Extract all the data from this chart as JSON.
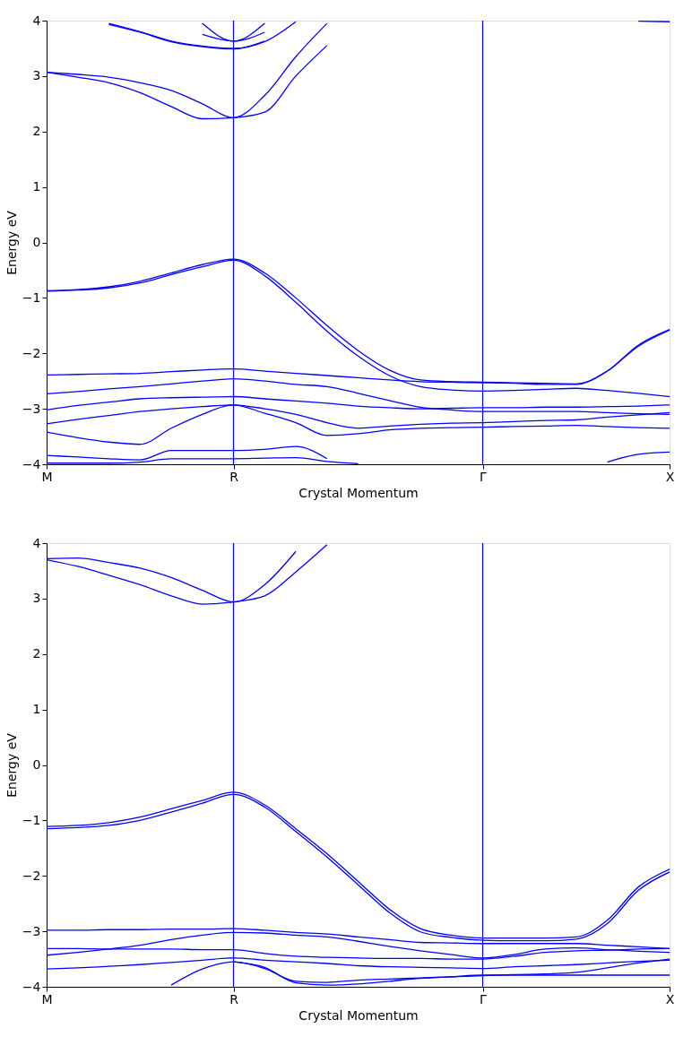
{
  "chart_data": [
    {
      "type": "line",
      "xlabel": "Crystal Momentum",
      "ylabel": "Energy eV",
      "ylim": [
        -4,
        4
      ],
      "categories": [
        "M",
        null,
        null,
        null,
        null,
        null,
        "R",
        null,
        null,
        null,
        null,
        null,
        null,
        null,
        "Γ",
        null,
        null,
        null,
        null,
        null,
        "X"
      ],
      "yticks": [
        -4,
        -3,
        -2,
        -1,
        0,
        1,
        2,
        3,
        4
      ],
      "grid": false,
      "legend": false,
      "marker": "none",
      "line_style": "solid",
      "ref_lines": [
        {
          "axis": "x",
          "value": "R",
          "color": "#0000ff"
        },
        {
          "axis": "x",
          "value": "Γ",
          "color": "#0000ff"
        }
      ],
      "series": [
        {
          "color": "#0000ff",
          "values": [
            3.07,
            3.03,
            2.98,
            2.88,
            2.74,
            2.5,
            2.25,
            2.65,
            3.35,
            3.95,
            null,
            null,
            null,
            null,
            null,
            null,
            null,
            null,
            null,
            null,
            null
          ]
        },
        {
          "color": "#0000ff",
          "values": [
            3.07,
            2.98,
            2.88,
            2.7,
            2.45,
            2.23,
            2.25,
            2.35,
            3.0,
            3.55,
            null,
            null,
            null,
            null,
            null,
            null,
            null,
            null,
            null,
            null,
            null
          ]
        },
        {
          "color": "#0000ff",
          "values": [
            null,
            null,
            3.95,
            3.8,
            3.63,
            3.54,
            3.5,
            3.62,
            3.98,
            null,
            null,
            null,
            null,
            null,
            null,
            null,
            null,
            null,
            null,
            null,
            null
          ]
        },
        {
          "color": "#0000ff",
          "values": [
            null,
            null,
            3.93,
            3.79,
            3.62,
            3.53,
            3.49,
            3.63,
            null,
            null,
            null,
            null,
            null,
            null,
            null,
            null,
            null,
            null,
            null,
            null,
            null
          ]
        },
        {
          "color": "#0000ff",
          "values": [
            null,
            null,
            null,
            null,
            null,
            3.75,
            3.63,
            3.79,
            null,
            null,
            null,
            null,
            null,
            null,
            null,
            null,
            null,
            null,
            null,
            null,
            null
          ]
        },
        {
          "color": "#0000ff",
          "values": [
            null,
            null,
            null,
            null,
            null,
            3.95,
            3.63,
            3.95,
            null,
            null,
            null,
            null,
            null,
            null,
            null,
            null,
            null,
            null,
            null,
            null,
            null
          ]
        },
        {
          "color": "#0000ff",
          "values": [
            null,
            null,
            null,
            null,
            null,
            null,
            null,
            null,
            null,
            null,
            null,
            null,
            null,
            null,
            null,
            null,
            null,
            null,
            null,
            3.99,
            3.98
          ]
        },
        {
          "color": "#0000ff",
          "values": [
            -0.87,
            -0.85,
            -0.8,
            -0.7,
            -0.55,
            -0.4,
            -0.3,
            -0.55,
            -1.0,
            -1.5,
            -1.95,
            -2.3,
            -2.48,
            -2.51,
            -2.52,
            -2.53,
            -2.54,
            -2.55,
            -2.32,
            -1.85,
            -1.57
          ]
        },
        {
          "color": "#0000ff",
          "values": [
            -0.88,
            -0.86,
            -0.82,
            -0.73,
            -0.58,
            -0.44,
            -0.32,
            -0.6,
            -1.08,
            -1.6,
            -2.05,
            -2.4,
            -2.6,
            -2.66,
            -2.68,
            -2.67,
            -2.65,
            -2.63,
            -2.67,
            -2.72,
            -2.78
          ]
        },
        {
          "color": "#0000ff",
          "values": [
            -2.39,
            -2.38,
            -2.37,
            -2.36,
            -2.33,
            -2.3,
            -2.28,
            -2.32,
            -2.36,
            -2.4,
            -2.44,
            -2.48,
            -2.51,
            -2.52,
            -2.53,
            -2.54,
            -2.56,
            -2.56,
            -2.32,
            -1.87,
            -1.58
          ]
        },
        {
          "color": "#0000ff",
          "values": [
            -2.73,
            -2.69,
            -2.64,
            -2.6,
            -2.55,
            -2.5,
            -2.46,
            -2.5,
            -2.56,
            -2.6,
            -2.72,
            -2.85,
            -2.97,
            -3.02,
            -3.05,
            -3.05,
            -3.05,
            -3.05,
            -3.07,
            -3.09,
            -3.1
          ]
        },
        {
          "color": "#0000ff",
          "values": [
            -3.02,
            -2.94,
            -2.88,
            -2.82,
            -2.8,
            -2.79,
            -2.78,
            -2.82,
            -2.86,
            -2.9,
            -2.95,
            -2.98,
            -3.0,
            -2.99,
            -2.98,
            -2.98,
            -2.97,
            -2.97,
            -2.96,
            -2.95,
            -2.93
          ]
        },
        {
          "color": "#0000ff",
          "values": [
            -3.27,
            -3.19,
            -3.12,
            -3.05,
            -3.0,
            -2.96,
            -2.93,
            -3.0,
            -3.1,
            -3.25,
            -3.35,
            -3.31,
            -3.28,
            -3.26,
            -3.25,
            -3.23,
            -3.21,
            -3.2,
            -3.15,
            -3.11,
            -3.07
          ]
        },
        {
          "color": "#0000ff",
          "values": [
            -3.42,
            -3.52,
            -3.6,
            -3.64,
            -3.35,
            -3.1,
            -2.93,
            -3.08,
            -3.25,
            -3.48,
            -3.45,
            -3.38,
            -3.35,
            -3.34,
            -3.33,
            -3.32,
            -3.31,
            -3.3,
            -3.32,
            -3.34,
            -3.35
          ]
        },
        {
          "color": "#0000ff",
          "values": [
            -3.84,
            -3.87,
            -3.9,
            -3.92,
            -3.75,
            -3.75,
            -3.75,
            -3.73,
            -3.68,
            -3.9,
            null,
            null,
            null,
            null,
            null,
            null,
            null,
            null,
            null,
            null,
            null
          ]
        },
        {
          "color": "#0000ff",
          "values": [
            -3.98,
            -3.98,
            -3.98,
            -3.96,
            -3.9,
            -3.9,
            -3.9,
            -3.89,
            -3.88,
            -3.95,
            -3.99,
            null,
            null,
            null,
            null,
            null,
            null,
            null,
            null,
            null,
            null
          ]
        },
        {
          "color": "#0000ff",
          "values": [
            null,
            null,
            null,
            null,
            null,
            null,
            null,
            null,
            null,
            null,
            null,
            null,
            null,
            null,
            null,
            null,
            null,
            null,
            -3.96,
            -3.82,
            -3.78
          ]
        }
      ]
    },
    {
      "type": "line",
      "xlabel": "Crystal Momentum",
      "ylabel": "Energy eV",
      "ylim": [
        -4,
        4
      ],
      "categories": [
        "M",
        null,
        null,
        null,
        null,
        null,
        "R",
        null,
        null,
        null,
        null,
        null,
        null,
        null,
        "Γ",
        null,
        null,
        null,
        null,
        null,
        "X"
      ],
      "yticks": [
        -4,
        -3,
        -2,
        -1,
        0,
        1,
        2,
        3,
        4
      ],
      "grid": false,
      "legend": false,
      "marker": "none",
      "line_style": "solid",
      "ref_lines": [
        {
          "axis": "x",
          "value": "R",
          "color": "#0000ff"
        },
        {
          "axis": "x",
          "value": "Γ",
          "color": "#0000ff"
        }
      ],
      "series": [
        {
          "color": "#0000ff",
          "values": [
            3.72,
            3.73,
            3.65,
            3.55,
            3.38,
            3.15,
            2.94,
            3.25,
            3.85,
            null,
            null,
            null,
            null,
            null,
            null,
            null,
            null,
            null,
            null,
            null,
            null
          ]
        },
        {
          "color": "#0000ff",
          "values": [
            3.7,
            3.58,
            3.42,
            3.25,
            3.05,
            2.9,
            2.94,
            3.05,
            3.48,
            3.97,
            null,
            null,
            null,
            null,
            null,
            null,
            null,
            null,
            null,
            null,
            null
          ]
        },
        {
          "color": "#0000ff",
          "values": [
            -1.11,
            -1.09,
            -1.04,
            -0.94,
            -0.79,
            -0.64,
            -0.49,
            -0.72,
            -1.15,
            -1.6,
            -2.1,
            -2.6,
            -2.95,
            -3.07,
            -3.12,
            -3.12,
            -3.12,
            -3.1,
            -2.8,
            -2.2,
            -1.88
          ]
        },
        {
          "color": "#0000ff",
          "values": [
            -1.15,
            -1.13,
            -1.09,
            -1.0,
            -0.85,
            -0.69,
            -0.53,
            -0.76,
            -1.2,
            -1.66,
            -2.16,
            -2.66,
            -3.01,
            -3.11,
            -3.16,
            -3.17,
            -3.17,
            -3.14,
            -2.86,
            -2.26,
            -1.93
          ]
        },
        {
          "color": "#0000ff",
          "values": [
            -2.98,
            -2.98,
            -2.97,
            -2.97,
            -2.96,
            -2.96,
            -2.95,
            -2.98,
            -3.02,
            -3.05,
            -3.1,
            -3.15,
            -3.2,
            -3.21,
            -3.22,
            -3.22,
            -3.22,
            -3.22,
            -3.25,
            -3.28,
            -3.31
          ]
        },
        {
          "color": "#0000ff",
          "values": [
            -3.43,
            -3.38,
            -3.32,
            -3.25,
            -3.15,
            -3.07,
            -3.02,
            -3.03,
            -3.07,
            -3.1,
            -3.18,
            -3.27,
            -3.35,
            -3.42,
            -3.48,
            -3.42,
            -3.32,
            -3.3,
            -3.33,
            -3.36,
            -3.38
          ]
        },
        {
          "color": "#0000ff",
          "values": [
            -3.31,
            -3.31,
            -3.32,
            -3.32,
            -3.32,
            -3.33,
            -3.33,
            -3.4,
            -3.45,
            -3.47,
            -3.48,
            -3.49,
            -3.49,
            -3.5,
            -3.5,
            -3.45,
            -3.38,
            -3.35,
            -3.34,
            -3.32,
            -3.31
          ]
        },
        {
          "color": "#0000ff",
          "values": [
            -3.68,
            -3.66,
            -3.63,
            -3.6,
            -3.56,
            -3.52,
            -3.48,
            -3.52,
            -3.55,
            -3.58,
            -3.62,
            -3.64,
            -3.65,
            -3.66,
            -3.67,
            -3.64,
            -3.62,
            -3.6,
            -3.57,
            -3.54,
            -3.52
          ]
        },
        {
          "color": "#0000ff",
          "values": [
            null,
            null,
            null,
            null,
            -3.97,
            -3.68,
            -3.55,
            -3.67,
            -3.9,
            -3.92,
            -3.88,
            -3.86,
            -3.84,
            -3.82,
            -3.8,
            -3.78,
            -3.77,
            -3.74,
            -3.66,
            -3.57,
            -3.5
          ]
        },
        {
          "color": "#0000ff",
          "values": [
            null,
            null,
            null,
            null,
            null,
            null,
            -3.55,
            -3.65,
            -3.93,
            -3.97,
            -3.95,
            -3.9,
            -3.85,
            -3.82,
            -3.79,
            -3.79,
            -3.79,
            -3.79,
            -3.79,
            -3.79,
            -3.79
          ]
        }
      ]
    }
  ]
}
